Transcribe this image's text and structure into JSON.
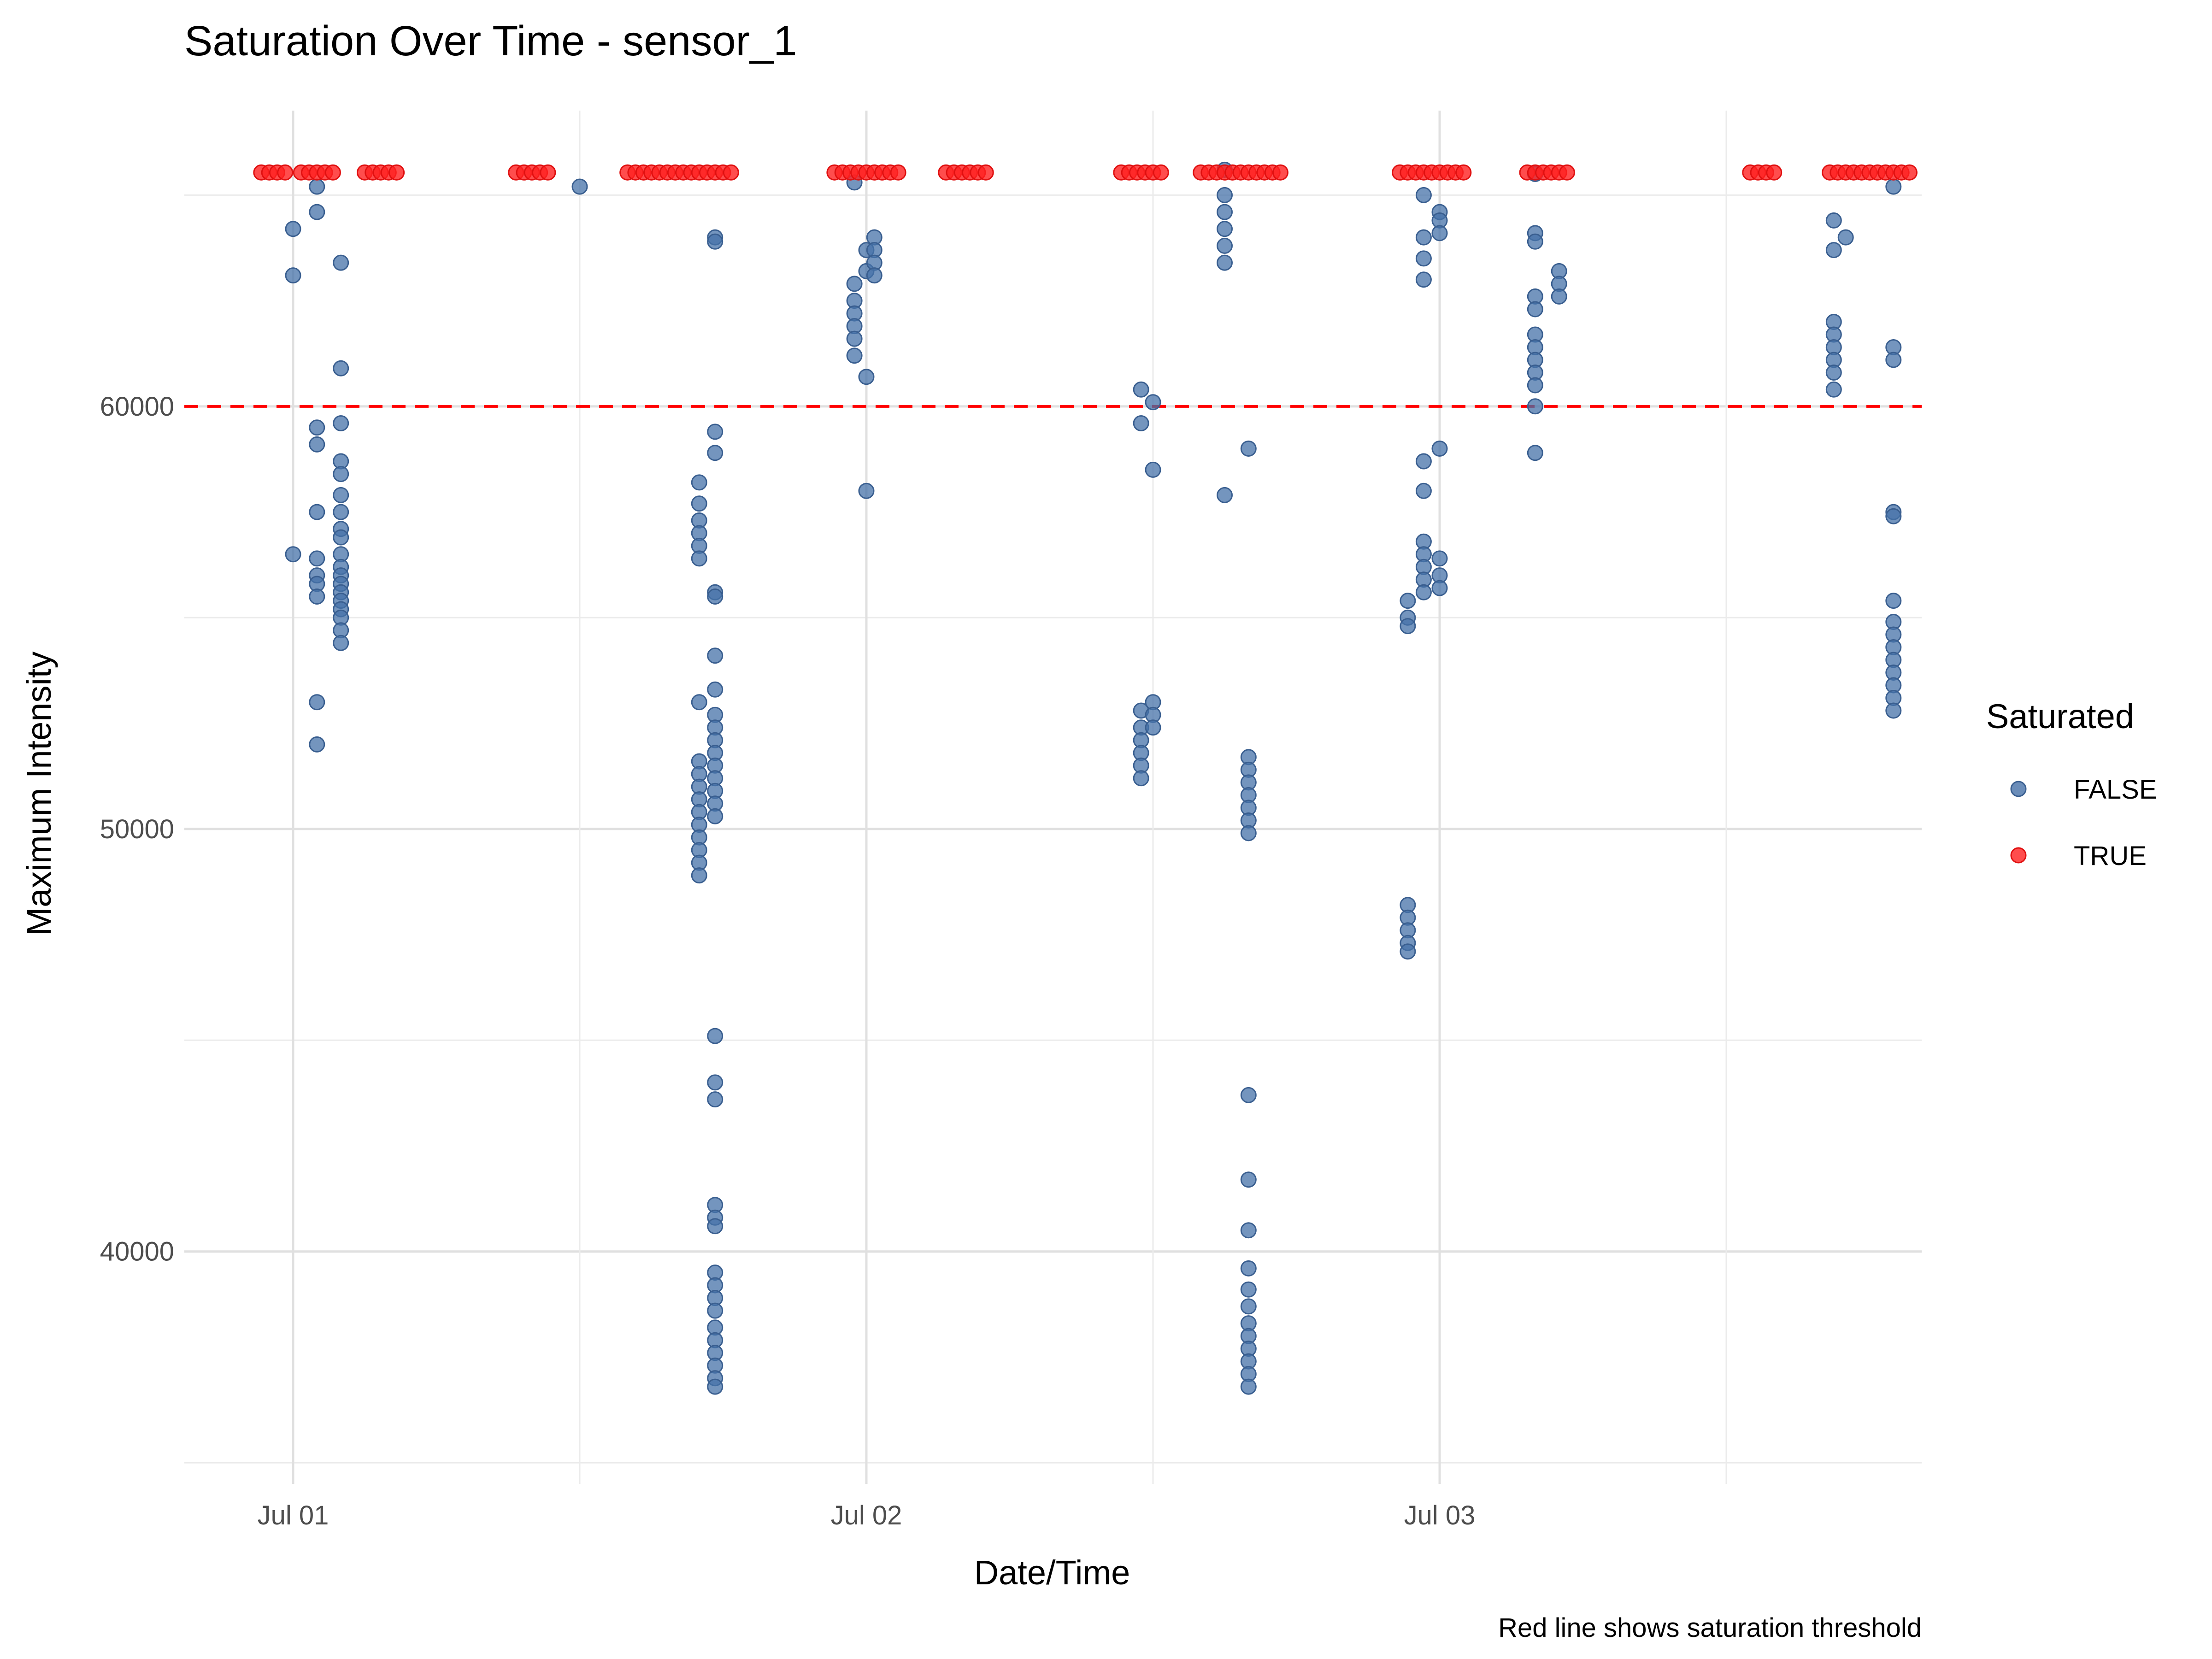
{
  "chart_data": {
    "type": "scatter",
    "title": "Saturation Over Time - sensor_1",
    "xlabel": "Date/Time",
    "ylabel": "Maximum Intensity",
    "caption": "Red line shows saturation threshold",
    "x_ticks": [
      "Jul 01",
      "Jul 02",
      "Jul 03"
    ],
    "y_ticks": [
      "40000",
      "50000",
      "60000"
    ],
    "ylim": [
      34500,
      67000
    ],
    "threshold": 60000,
    "saturation_value": 65535,
    "grid": true,
    "legend": {
      "title": "Saturated",
      "position": "right",
      "entries": [
        {
          "label": "FALSE",
          "color": "#4671a8"
        },
        {
          "label": "TRUE",
          "color": "#ff2020"
        }
      ]
    },
    "threshold_color": "#ff0000",
    "series": [
      {
        "name": "FALSE",
        "points": [
          [
            "2025-07-01 00:00",
            64200
          ],
          [
            "2025-07-01 00:00",
            63100
          ],
          [
            "2025-07-01 00:00",
            56500
          ],
          [
            "2025-07-01 01:00",
            65200
          ],
          [
            "2025-07-01 01:00",
            64600
          ],
          [
            "2025-07-01 01:00",
            59500
          ],
          [
            "2025-07-01 01:00",
            59100
          ],
          [
            "2025-07-01 01:00",
            57500
          ],
          [
            "2025-07-01 01:00",
            56400
          ],
          [
            "2025-07-01 01:00",
            56000
          ],
          [
            "2025-07-01 01:00",
            55800
          ],
          [
            "2025-07-01 01:00",
            55500
          ],
          [
            "2025-07-01 01:00",
            53000
          ],
          [
            "2025-07-01 01:00",
            52000
          ],
          [
            "2025-07-01 02:00",
            63400
          ],
          [
            "2025-07-01 02:00",
            60900
          ],
          [
            "2025-07-01 02:00",
            59600
          ],
          [
            "2025-07-01 02:00",
            58700
          ],
          [
            "2025-07-01 02:00",
            58400
          ],
          [
            "2025-07-01 02:00",
            57900
          ],
          [
            "2025-07-01 02:00",
            57500
          ],
          [
            "2025-07-01 02:00",
            57100
          ],
          [
            "2025-07-01 02:00",
            56900
          ],
          [
            "2025-07-01 02:00",
            56500
          ],
          [
            "2025-07-01 02:00",
            56200
          ],
          [
            "2025-07-01 02:00",
            56000
          ],
          [
            "2025-07-01 02:00",
            55800
          ],
          [
            "2025-07-01 02:00",
            55600
          ],
          [
            "2025-07-01 02:00",
            55400
          ],
          [
            "2025-07-01 02:00",
            55200
          ],
          [
            "2025-07-01 02:00",
            55000
          ],
          [
            "2025-07-01 02:00",
            54700
          ],
          [
            "2025-07-01 02:00",
            54400
          ],
          [
            "2025-07-01 12:00",
            65200
          ],
          [
            "2025-07-01 17:00",
            58200
          ],
          [
            "2025-07-01 17:00",
            57700
          ],
          [
            "2025-07-01 17:00",
            57300
          ],
          [
            "2025-07-01 17:00",
            57000
          ],
          [
            "2025-07-01 17:00",
            56700
          ],
          [
            "2025-07-01 17:00",
            56400
          ],
          [
            "2025-07-01 17:00",
            53000
          ],
          [
            "2025-07-01 17:00",
            51600
          ],
          [
            "2025-07-01 17:00",
            51300
          ],
          [
            "2025-07-01 17:00",
            51000
          ],
          [
            "2025-07-01 17:00",
            50700
          ],
          [
            "2025-07-01 17:00",
            50400
          ],
          [
            "2025-07-01 17:00",
            50100
          ],
          [
            "2025-07-01 17:00",
            49800
          ],
          [
            "2025-07-01 17:00",
            49500
          ],
          [
            "2025-07-01 17:00",
            49200
          ],
          [
            "2025-07-01 17:00",
            48900
          ],
          [
            "2025-07-01 17:40",
            64000
          ],
          [
            "2025-07-01 17:40",
            63900
          ],
          [
            "2025-07-01 17:40",
            59400
          ],
          [
            "2025-07-01 17:40",
            58900
          ],
          [
            "2025-07-01 17:40",
            55600
          ],
          [
            "2025-07-01 17:40",
            55500
          ],
          [
            "2025-07-01 17:40",
            54100
          ],
          [
            "2025-07-01 17:40",
            53300
          ],
          [
            "2025-07-01 17:40",
            52700
          ],
          [
            "2025-07-01 17:40",
            52400
          ],
          [
            "2025-07-01 17:40",
            52100
          ],
          [
            "2025-07-01 17:40",
            51800
          ],
          [
            "2025-07-01 17:40",
            51500
          ],
          [
            "2025-07-01 17:40",
            51200
          ],
          [
            "2025-07-01 17:40",
            50900
          ],
          [
            "2025-07-01 17:40",
            50600
          ],
          [
            "2025-07-01 17:40",
            50300
          ],
          [
            "2025-07-01 17:40",
            45100
          ],
          [
            "2025-07-01 17:40",
            44000
          ],
          [
            "2025-07-01 17:40",
            43600
          ],
          [
            "2025-07-01 17:40",
            41100
          ],
          [
            "2025-07-01 17:40",
            40800
          ],
          [
            "2025-07-01 17:40",
            40600
          ],
          [
            "2025-07-01 17:40",
            39500
          ],
          [
            "2025-07-01 17:40",
            39200
          ],
          [
            "2025-07-01 17:40",
            38900
          ],
          [
            "2025-07-01 17:40",
            38600
          ],
          [
            "2025-07-01 17:40",
            38200
          ],
          [
            "2025-07-01 17:40",
            37900
          ],
          [
            "2025-07-01 17:40",
            37600
          ],
          [
            "2025-07-01 17:40",
            37300
          ],
          [
            "2025-07-01 17:40",
            37000
          ],
          [
            "2025-07-01 17:40",
            36800
          ],
          [
            "2025-07-01 23:30",
            65300
          ],
          [
            "2025-07-01 23:30",
            62900
          ],
          [
            "2025-07-01 23:30",
            62500
          ],
          [
            "2025-07-01 23:30",
            62200
          ],
          [
            "2025-07-01 23:30",
            61900
          ],
          [
            "2025-07-01 23:30",
            61600
          ],
          [
            "2025-07-01 23:30",
            61200
          ],
          [
            "2025-07-02 00:00",
            63700
          ],
          [
            "2025-07-02 00:00",
            63200
          ],
          [
            "2025-07-02 00:00",
            60700
          ],
          [
            "2025-07-02 00:00",
            58000
          ],
          [
            "2025-07-02 00:20",
            64000
          ],
          [
            "2025-07-02 00:20",
            63700
          ],
          [
            "2025-07-02 00:20",
            63400
          ],
          [
            "2025-07-02 00:20",
            63100
          ],
          [
            "2025-07-02 11:30",
            60400
          ],
          [
            "2025-07-02 11:30",
            59600
          ],
          [
            "2025-07-02 11:30",
            52800
          ],
          [
            "2025-07-02 11:30",
            52400
          ],
          [
            "2025-07-02 11:30",
            52100
          ],
          [
            "2025-07-02 11:30",
            51800
          ],
          [
            "2025-07-02 11:30",
            51500
          ],
          [
            "2025-07-02 11:30",
            51200
          ],
          [
            "2025-07-02 12:00",
            60100
          ],
          [
            "2025-07-02 12:00",
            58500
          ],
          [
            "2025-07-02 12:00",
            53000
          ],
          [
            "2025-07-02 12:00",
            52700
          ],
          [
            "2025-07-02 12:00",
            52400
          ],
          [
            "2025-07-02 15:00",
            65600
          ],
          [
            "2025-07-02 15:00",
            65000
          ],
          [
            "2025-07-02 15:00",
            64600
          ],
          [
            "2025-07-02 15:00",
            64200
          ],
          [
            "2025-07-02 15:00",
            63800
          ],
          [
            "2025-07-02 15:00",
            63400
          ],
          [
            "2025-07-02 15:00",
            57900
          ],
          [
            "2025-07-02 16:00",
            59000
          ],
          [
            "2025-07-02 16:00",
            51700
          ],
          [
            "2025-07-02 16:00",
            51400
          ],
          [
            "2025-07-02 16:00",
            51100
          ],
          [
            "2025-07-02 16:00",
            50800
          ],
          [
            "2025-07-02 16:00",
            50500
          ],
          [
            "2025-07-02 16:00",
            50200
          ],
          [
            "2025-07-02 16:00",
            49900
          ],
          [
            "2025-07-02 16:00",
            43700
          ],
          [
            "2025-07-02 16:00",
            41700
          ],
          [
            "2025-07-02 16:00",
            40500
          ],
          [
            "2025-07-02 16:00",
            39600
          ],
          [
            "2025-07-02 16:00",
            39100
          ],
          [
            "2025-07-02 16:00",
            38700
          ],
          [
            "2025-07-02 16:00",
            38300
          ],
          [
            "2025-07-02 16:00",
            38000
          ],
          [
            "2025-07-02 16:00",
            37700
          ],
          [
            "2025-07-02 16:00",
            37400
          ],
          [
            "2025-07-02 16:00",
            37100
          ],
          [
            "2025-07-02 16:00",
            36800
          ],
          [
            "2025-07-02 22:40",
            55400
          ],
          [
            "2025-07-02 22:40",
            55000
          ],
          [
            "2025-07-02 22:40",
            54800
          ],
          [
            "2025-07-02 22:40",
            48200
          ],
          [
            "2025-07-02 22:40",
            47900
          ],
          [
            "2025-07-02 22:40",
            47600
          ],
          [
            "2025-07-02 22:40",
            47300
          ],
          [
            "2025-07-02 22:40",
            47100
          ],
          [
            "2025-07-02 23:20",
            65000
          ],
          [
            "2025-07-02 23:20",
            64000
          ],
          [
            "2025-07-02 23:20",
            63500
          ],
          [
            "2025-07-02 23:20",
            63000
          ],
          [
            "2025-07-02 23:20",
            58700
          ],
          [
            "2025-07-02 23:20",
            58000
          ],
          [
            "2025-07-02 23:20",
            56800
          ],
          [
            "2025-07-02 23:20",
            56500
          ],
          [
            "2025-07-02 23:20",
            56200
          ],
          [
            "2025-07-02 23:20",
            55900
          ],
          [
            "2025-07-02 23:20",
            55600
          ],
          [
            "2025-07-03 00:00",
            64600
          ],
          [
            "2025-07-03 00:00",
            64400
          ],
          [
            "2025-07-03 00:00",
            64100
          ],
          [
            "2025-07-03 00:00",
            59000
          ],
          [
            "2025-07-03 00:00",
            56400
          ],
          [
            "2025-07-03 00:00",
            56000
          ],
          [
            "2025-07-03 00:00",
            55700
          ],
          [
            "2025-07-03 04:00",
            65500
          ],
          [
            "2025-07-03 04:00",
            64100
          ],
          [
            "2025-07-03 04:00",
            63900
          ],
          [
            "2025-07-03 04:00",
            62600
          ],
          [
            "2025-07-03 04:00",
            62300
          ],
          [
            "2025-07-03 04:00",
            61700
          ],
          [
            "2025-07-03 04:00",
            61400
          ],
          [
            "2025-07-03 04:00",
            61100
          ],
          [
            "2025-07-03 04:00",
            60800
          ],
          [
            "2025-07-03 04:00",
            60500
          ],
          [
            "2025-07-03 04:00",
            60000
          ],
          [
            "2025-07-03 04:00",
            58900
          ],
          [
            "2025-07-03 05:00",
            63200
          ],
          [
            "2025-07-03 05:00",
            62900
          ],
          [
            "2025-07-03 05:00",
            62600
          ],
          [
            "2025-07-03 16:30",
            64400
          ],
          [
            "2025-07-03 16:30",
            63700
          ],
          [
            "2025-07-03 16:30",
            62000
          ],
          [
            "2025-07-03 16:30",
            61700
          ],
          [
            "2025-07-03 16:30",
            61400
          ],
          [
            "2025-07-03 16:30",
            61100
          ],
          [
            "2025-07-03 16:30",
            60800
          ],
          [
            "2025-07-03 16:30",
            60400
          ],
          [
            "2025-07-03 17:00",
            64000
          ],
          [
            "2025-07-03 19:00",
            65200
          ],
          [
            "2025-07-03 19:00",
            61400
          ],
          [
            "2025-07-03 19:00",
            61100
          ],
          [
            "2025-07-03 19:00",
            57500
          ],
          [
            "2025-07-03 19:00",
            57400
          ],
          [
            "2025-07-03 19:00",
            55400
          ],
          [
            "2025-07-03 19:00",
            54900
          ],
          [
            "2025-07-03 19:00",
            54600
          ],
          [
            "2025-07-03 19:00",
            54300
          ],
          [
            "2025-07-03 19:00",
            54000
          ],
          [
            "2025-07-03 19:00",
            53700
          ],
          [
            "2025-07-03 19:00",
            53400
          ],
          [
            "2025-07-03 19:00",
            53100
          ],
          [
            "2025-07-03 19:00",
            52800
          ]
        ]
      },
      {
        "name": "TRUE",
        "value": 65535,
        "times": [
          "2025-06-30 22:40",
          "2025-06-30 23:00",
          "2025-06-30 23:20",
          "2025-06-30 23:40",
          "2025-07-01 00:20",
          "2025-07-01 00:40",
          "2025-07-01 01:00",
          "2025-07-01 01:20",
          "2025-07-01 01:40",
          "2025-07-01 03:00",
          "2025-07-01 03:20",
          "2025-07-01 03:40",
          "2025-07-01 04:00",
          "2025-07-01 04:20",
          "2025-07-01 09:20",
          "2025-07-01 09:40",
          "2025-07-01 10:00",
          "2025-07-01 10:20",
          "2025-07-01 10:40",
          "2025-07-01 14:00",
          "2025-07-01 14:20",
          "2025-07-01 14:40",
          "2025-07-01 15:00",
          "2025-07-01 15:20",
          "2025-07-01 15:40",
          "2025-07-01 16:00",
          "2025-07-01 16:20",
          "2025-07-01 16:40",
          "2025-07-01 17:00",
          "2025-07-01 17:20",
          "2025-07-01 17:40",
          "2025-07-01 18:00",
          "2025-07-01 18:20",
          "2025-07-01 22:40",
          "2025-07-01 23:00",
          "2025-07-01 23:20",
          "2025-07-01 23:40",
          "2025-07-02 00:00",
          "2025-07-02 00:20",
          "2025-07-02 00:40",
          "2025-07-02 01:00",
          "2025-07-02 01:20",
          "2025-07-02 03:20",
          "2025-07-02 03:40",
          "2025-07-02 04:00",
          "2025-07-02 04:20",
          "2025-07-02 04:40",
          "2025-07-02 05:00",
          "2025-07-02 10:40",
          "2025-07-02 11:00",
          "2025-07-02 11:20",
          "2025-07-02 11:40",
          "2025-07-02 12:00",
          "2025-07-02 12:20",
          "2025-07-02 14:00",
          "2025-07-02 14:20",
          "2025-07-02 14:40",
          "2025-07-02 15:00",
          "2025-07-02 15:20",
          "2025-07-02 15:40",
          "2025-07-02 16:00",
          "2025-07-02 16:20",
          "2025-07-02 16:40",
          "2025-07-02 17:00",
          "2025-07-02 17:20",
          "2025-07-02 22:20",
          "2025-07-02 22:40",
          "2025-07-02 23:00",
          "2025-07-02 23:20",
          "2025-07-02 23:40",
          "2025-07-03 00:00",
          "2025-07-03 00:20",
          "2025-07-03 00:40",
          "2025-07-03 01:00",
          "2025-07-03 03:40",
          "2025-07-03 04:00",
          "2025-07-03 04:20",
          "2025-07-03 04:40",
          "2025-07-03 05:00",
          "2025-07-03 05:20",
          "2025-07-03 13:00",
          "2025-07-03 13:20",
          "2025-07-03 13:40",
          "2025-07-03 14:00",
          "2025-07-03 16:20",
          "2025-07-03 16:40",
          "2025-07-03 17:00",
          "2025-07-03 17:20",
          "2025-07-03 17:40",
          "2025-07-03 18:00",
          "2025-07-03 18:20",
          "2025-07-03 18:40",
          "2025-07-03 19:00",
          "2025-07-03 19:20",
          "2025-07-03 19:40"
        ]
      }
    ]
  }
}
